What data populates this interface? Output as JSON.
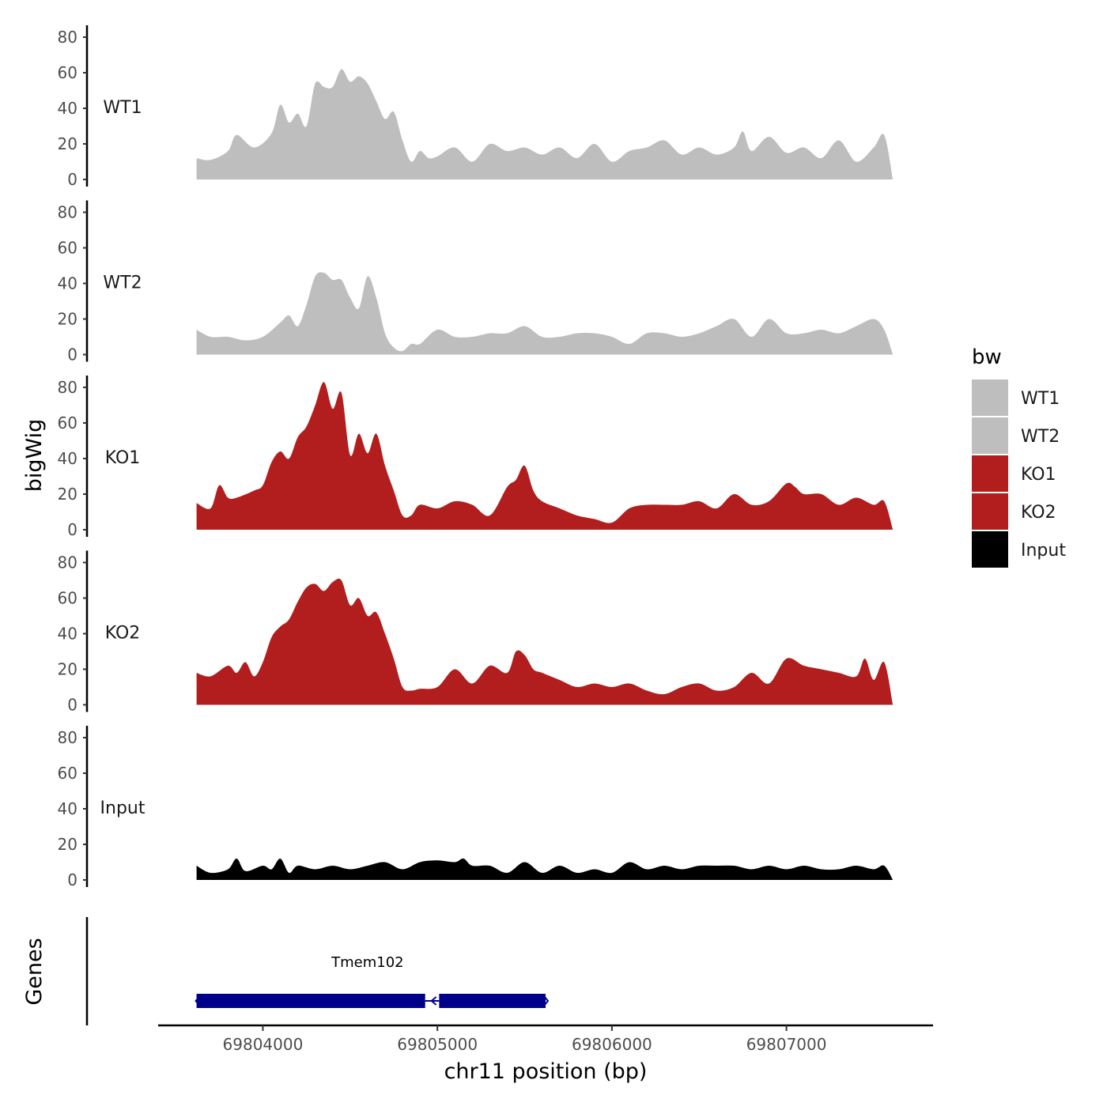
{
  "chart_data": {
    "type": "area",
    "ylabel": "bigWig",
    "xlabel": "chr11 position (bp)",
    "genes_label": "Genes",
    "x_ticks": [
      69804000,
      69805000,
      69806000,
      69807000
    ],
    "x_range": [
      69803400,
      69807840
    ],
    "y_ticks": [
      0,
      20,
      40,
      60,
      80
    ],
    "y_range": [
      0,
      88
    ],
    "legend": {
      "title": "bw",
      "position": "right",
      "entries": [
        {
          "label": "WT1",
          "color": "#bebebe"
        },
        {
          "label": "WT2",
          "color": "#bebebe"
        },
        {
          "label": "KO1",
          "color": "#b21e1e"
        },
        {
          "label": "KO2",
          "color": "#b21e1e"
        },
        {
          "label": "Input",
          "color": "#000000"
        }
      ]
    },
    "series": [
      {
        "name": "WT1",
        "color": "#bebebe",
        "x": [
          69803620,
          69803700,
          69803800,
          69803850,
          69803950,
          69804050,
          69804100,
          69804150,
          69804200,
          69804250,
          69804300,
          69804350,
          69804400,
          69804450,
          69804500,
          69804550,
          69804600,
          69804650,
          69804700,
          69804750,
          69804800,
          69804850,
          69804900,
          69804950,
          69805000,
          69805100,
          69805200,
          69805300,
          69805400,
          69805500,
          69805600,
          69805700,
          69805800,
          69805900,
          69806000,
          69806100,
          69806200,
          69806300,
          69806400,
          69806500,
          69806600,
          69806700,
          69806750,
          69806800,
          69806900,
          69807000,
          69807100,
          69807200,
          69807300,
          69807400,
          69807500,
          69807560,
          69807610
        ],
        "y": [
          12,
          11,
          16,
          25,
          18,
          26,
          42,
          32,
          37,
          30,
          54,
          52,
          52,
          62,
          55,
          58,
          54,
          44,
          34,
          38,
          22,
          10,
          16,
          12,
          13,
          18,
          10,
          20,
          16,
          18,
          14,
          18,
          12,
          20,
          10,
          16,
          18,
          22,
          14,
          18,
          14,
          18,
          27,
          16,
          24,
          15,
          18,
          12,
          22,
          10,
          18,
          25,
          0
        ]
      },
      {
        "name": "WT2",
        "color": "#bebebe",
        "x": [
          69803620,
          69803700,
          69803800,
          69803900,
          69804000,
          69804100,
          69804150,
          69804200,
          69804250,
          69804300,
          69804350,
          69804400,
          69804450,
          69804500,
          69804550,
          69804600,
          69804650,
          69804700,
          69804750,
          69804800,
          69804850,
          69804900,
          69805000,
          69805100,
          69805200,
          69805300,
          69805400,
          69805500,
          69805600,
          69805700,
          69805800,
          69805900,
          69806000,
          69806100,
          69806200,
          69806300,
          69806400,
          69806500,
          69806600,
          69806700,
          69806800,
          69806900,
          69807000,
          69807100,
          69807200,
          69807300,
          69807400,
          69807500,
          69807560,
          69807610
        ],
        "y": [
          14,
          10,
          10,
          8,
          10,
          18,
          22,
          16,
          28,
          44,
          46,
          42,
          42,
          32,
          26,
          44,
          32,
          12,
          4,
          2,
          6,
          6,
          14,
          10,
          10,
          12,
          12,
          16,
          10,
          10,
          12,
          12,
          10,
          6,
          12,
          12,
          10,
          12,
          16,
          20,
          10,
          20,
          12,
          12,
          14,
          12,
          16,
          20,
          14,
          0
        ]
      },
      {
        "name": "KO1",
        "color": "#b21e1e",
        "x": [
          69803620,
          69803700,
          69803750,
          69803800,
          69803850,
          69803950,
          69804000,
          69804050,
          69804100,
          69804150,
          69804200,
          69804250,
          69804300,
          69804350,
          69804400,
          69804450,
          69804500,
          69804550,
          69804600,
          69804650,
          69804700,
          69804750,
          69804800,
          69804850,
          69804900,
          69805000,
          69805100,
          69805200,
          69805300,
          69805400,
          69805450,
          69805500,
          69805550,
          69805600,
          69805700,
          69805800,
          69805900,
          69806000,
          69806100,
          69806200,
          69806300,
          69806400,
          69806500,
          69806600,
          69806700,
          69806800,
          69806900,
          69807000,
          69807050,
          69807100,
          69807200,
          69807300,
          69807400,
          69807500,
          69807560,
          69807610
        ],
        "y": [
          15,
          12,
          25,
          18,
          18,
          22,
          25,
          38,
          44,
          40,
          52,
          58,
          70,
          83,
          68,
          77,
          42,
          54,
          43,
          54,
          36,
          22,
          8,
          8,
          14,
          12,
          16,
          14,
          8,
          24,
          28,
          36,
          22,
          16,
          12,
          8,
          6,
          4,
          12,
          14,
          14,
          14,
          16,
          12,
          20,
          14,
          16,
          26,
          24,
          20,
          20,
          14,
          18,
          14,
          16,
          0
        ]
      },
      {
        "name": "KO2",
        "color": "#b21e1e",
        "x": [
          69803620,
          69803700,
          69803800,
          69803850,
          69803900,
          69803950,
          69804000,
          69804050,
          69804100,
          69804150,
          69804200,
          69804250,
          69804300,
          69804350,
          69804400,
          69804450,
          69804500,
          69804550,
          69804600,
          69804650,
          69804700,
          69804750,
          69804800,
          69804850,
          69804900,
          69805000,
          69805100,
          69805200,
          69805300,
          69805400,
          69805450,
          69805500,
          69805550,
          69805600,
          69805700,
          69805800,
          69805900,
          69806000,
          69806100,
          69806200,
          69806300,
          69806400,
          69806500,
          69806600,
          69806700,
          69806800,
          69806900,
          69807000,
          69807100,
          69807200,
          69807300,
          69807400,
          69807450,
          69807500,
          69807560,
          69807610
        ],
        "y": [
          18,
          16,
          22,
          18,
          24,
          16,
          24,
          38,
          44,
          48,
          58,
          66,
          68,
          64,
          69,
          70,
          56,
          60,
          50,
          52,
          40,
          26,
          10,
          8,
          9,
          10,
          20,
          12,
          22,
          18,
          30,
          28,
          20,
          18,
          14,
          10,
          12,
          10,
          12,
          8,
          6,
          10,
          12,
          8,
          10,
          18,
          12,
          26,
          22,
          20,
          18,
          16,
          26,
          14,
          24,
          0
        ]
      },
      {
        "name": "Input",
        "color": "#000000",
        "x": [
          69803620,
          69803700,
          69803800,
          69803850,
          69803900,
          69804000,
          69804050,
          69804100,
          69804150,
          69804200,
          69804300,
          69804400,
          69804500,
          69804600,
          69804700,
          69804800,
          69804900,
          69805000,
          69805100,
          69805150,
          69805200,
          69805300,
          69805400,
          69805500,
          69805600,
          69805700,
          69805800,
          69805900,
          69806000,
          69806100,
          69806200,
          69806300,
          69806400,
          69806500,
          69806600,
          69806700,
          69806800,
          69806900,
          69807000,
          69807100,
          69807200,
          69807300,
          69807400,
          69807500,
          69807560,
          69807610
        ],
        "y": [
          8,
          4,
          6,
          12,
          5,
          8,
          6,
          12,
          4,
          8,
          6,
          8,
          6,
          8,
          10,
          6,
          10,
          11,
          10,
          12,
          8,
          8,
          4,
          10,
          4,
          8,
          4,
          6,
          4,
          10,
          6,
          8,
          6,
          8,
          8,
          8,
          6,
          8,
          6,
          8,
          6,
          6,
          8,
          6,
          8,
          0
        ]
      }
    ],
    "genes": [
      {
        "name": "Tmem102",
        "strand": "-",
        "color": "#00008b",
        "exons": [
          [
            69803620,
            69804930
          ],
          [
            69805010,
            69805620
          ]
        ],
        "intron": [
          69804930,
          69805010
        ]
      }
    ]
  }
}
